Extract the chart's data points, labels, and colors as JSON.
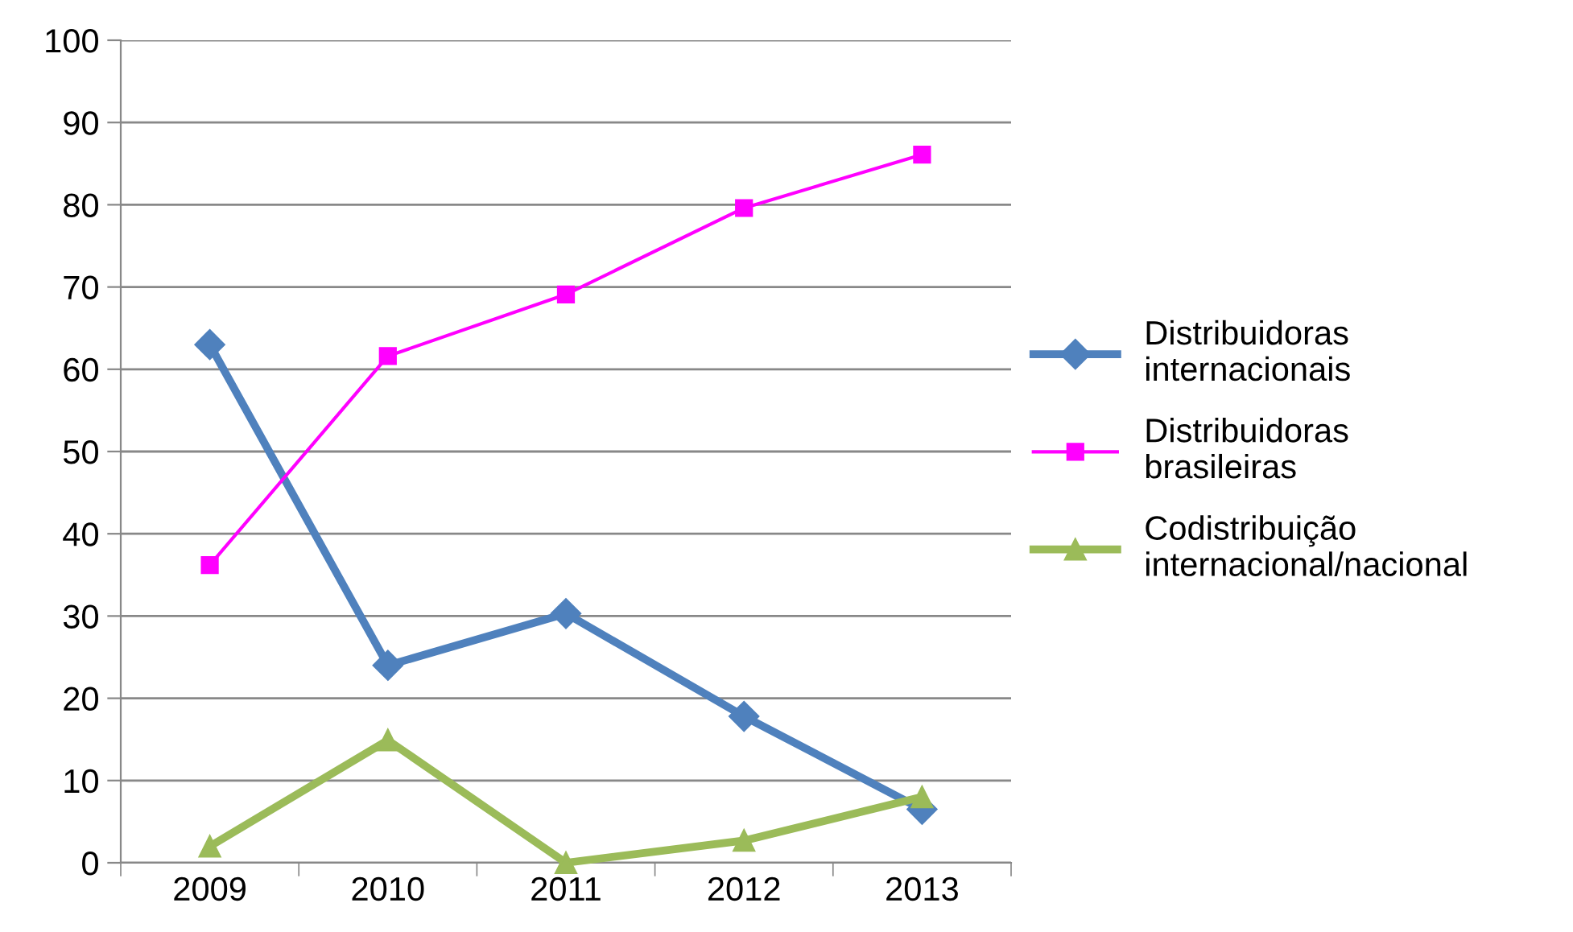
{
  "chart_data": {
    "type": "line",
    "categories": [
      "2009",
      "2010",
      "2011",
      "2012",
      "2013"
    ],
    "series": [
      {
        "name": "Distribuidoras\ninternacionais",
        "color": "#4f81bd",
        "marker": "diamond",
        "values": [
          63.0,
          24.0,
          30.3,
          17.8,
          6.5
        ]
      },
      {
        "name": "Distribuidoras\nbrasileiras",
        "color": "#ff00ff",
        "marker": "square",
        "values": [
          36.2,
          61.6,
          69.1,
          79.6,
          86.1
        ]
      },
      {
        "name": "Codistribuição\ninternacional/nacional",
        "color": "#9bbb59",
        "marker": "triangle",
        "values": [
          2.0,
          14.9,
          0.0,
          2.7,
          8.0
        ]
      }
    ],
    "ylim": [
      0,
      100
    ],
    "yticks": [
      0,
      10,
      20,
      30,
      40,
      50,
      60,
      70,
      80,
      90,
      100
    ],
    "grid": "y",
    "legend": "right"
  }
}
